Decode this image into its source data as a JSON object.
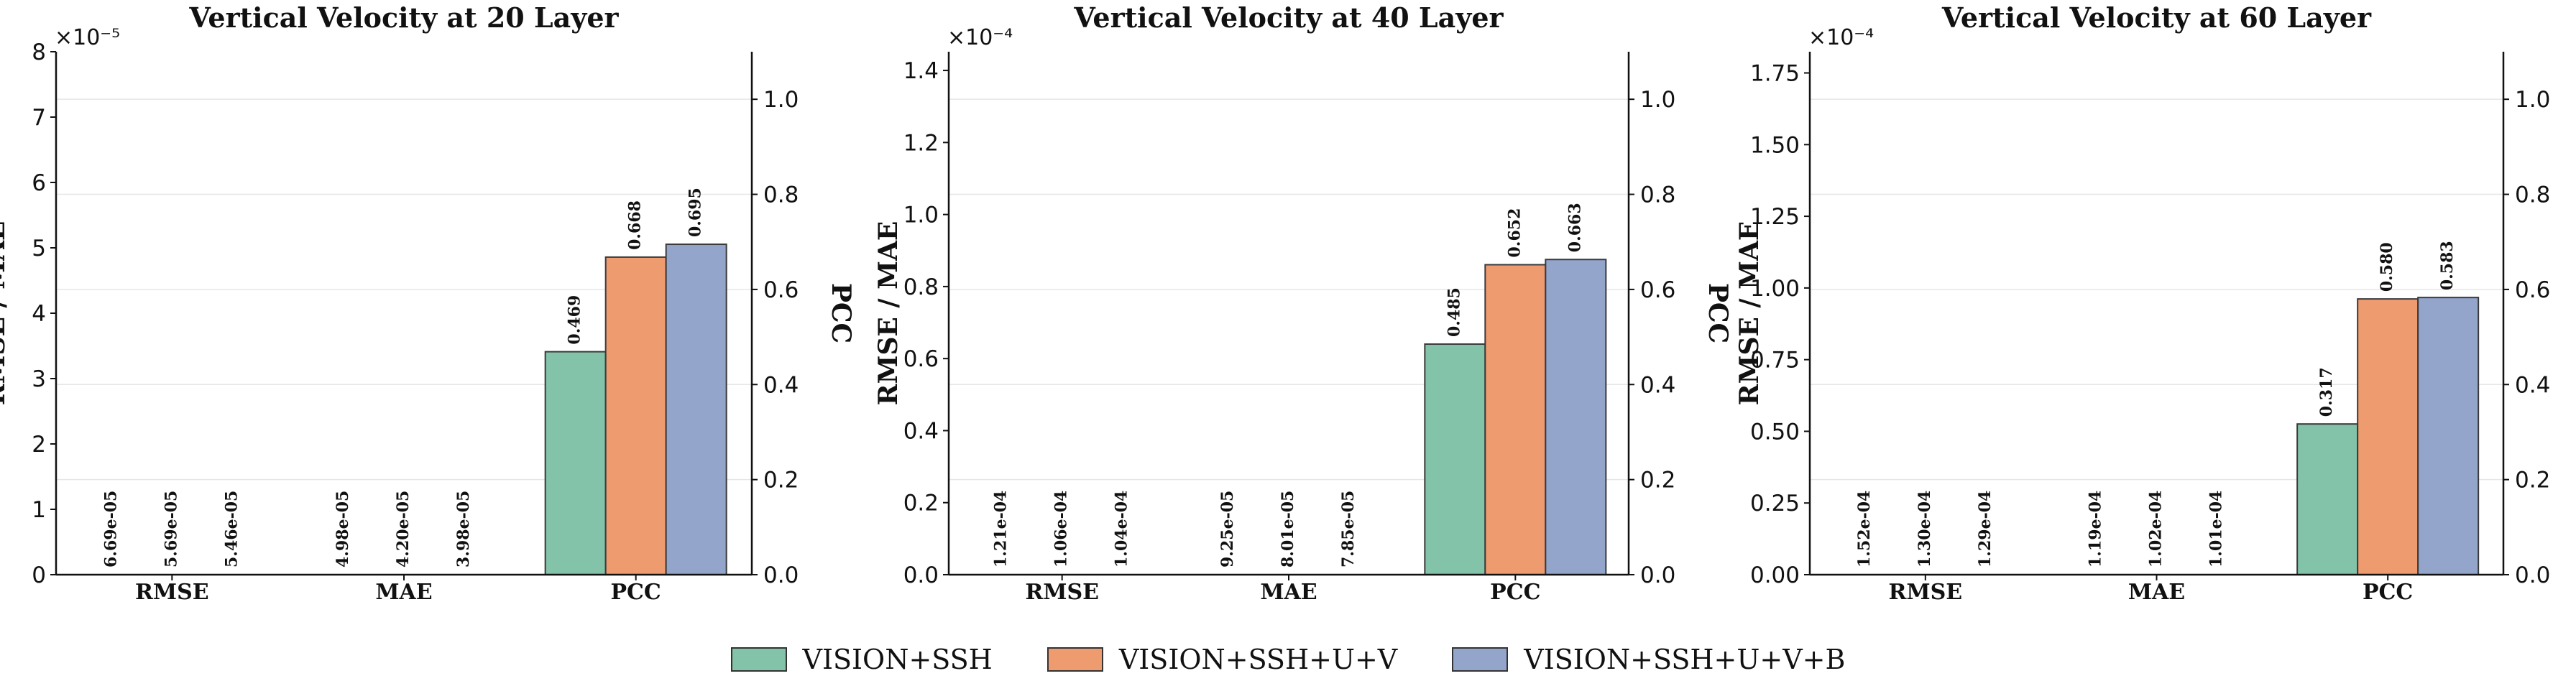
{
  "legend": {
    "items": [
      {
        "label": "VISION+SSH",
        "color": "#82c3a9"
      },
      {
        "label": "VISION+SSH+U+V",
        "color": "#ee9b70"
      },
      {
        "label": "VISION+SSH+U+V+B",
        "color": "#94a5cc"
      }
    ]
  },
  "chart_data": [
    {
      "type": "bar",
      "title": "Vertical Velocity at 20 Layer",
      "categories": [
        "RMSE",
        "MAE",
        "PCC"
      ],
      "ylabel": "RMSE / MAE",
      "ylabel_right": "PCC",
      "offset_text": "×10⁻⁵",
      "ylim": [
        0,
        8
      ],
      "yticks": [
        "0",
        "1",
        "2",
        "3",
        "4",
        "5",
        "6",
        "7",
        "8"
      ],
      "ylim_right": [
        0,
        1.1
      ],
      "yticks_right": [
        "0.0",
        "0.2",
        "0.4",
        "0.6",
        "0.8",
        "1.0"
      ],
      "series": [
        {
          "name": "VISION+SSH",
          "values": [
            6.69e-05,
            4.98e-05,
            0.469
          ],
          "labels": [
            "6.69e-05",
            "4.98e-05",
            "0.469"
          ]
        },
        {
          "name": "VISION+SSH+U+V",
          "values": [
            5.69e-05,
            4.2e-05,
            0.668
          ],
          "labels": [
            "5.69e-05",
            "4.20e-05",
            "0.668"
          ]
        },
        {
          "name": "VISION+SSH+U+V+B",
          "values": [
            5.46e-05,
            3.98e-05,
            0.695
          ],
          "labels": [
            "5.46e-05",
            "3.98e-05",
            "0.695"
          ]
        }
      ]
    },
    {
      "type": "bar",
      "title": "Vertical Velocity at 40 Layer",
      "categories": [
        "RMSE",
        "MAE",
        "PCC"
      ],
      "ylabel": "RMSE / MAE",
      "ylabel_right": "PCC",
      "offset_text": "×10⁻⁴",
      "ylim": [
        0,
        1.452
      ],
      "yticks": [
        "0.0",
        "0.2",
        "0.4",
        "0.6",
        "0.8",
        "1.0",
        "1.2",
        "1.4"
      ],
      "ylim_right": [
        0,
        1.1
      ],
      "yticks_right": [
        "0.0",
        "0.2",
        "0.4",
        "0.6",
        "0.8",
        "1.0"
      ],
      "series": [
        {
          "name": "VISION+SSH",
          "values": [
            0.000121,
            9.25e-05,
            0.485
          ],
          "labels": [
            "1.21e-04",
            "9.25e-05",
            "0.485"
          ]
        },
        {
          "name": "VISION+SSH+U+V",
          "values": [
            0.000106,
            8.01e-05,
            0.652
          ],
          "labels": [
            "1.06e-04",
            "8.01e-05",
            "0.652"
          ]
        },
        {
          "name": "VISION+SSH+U+V+B",
          "values": [
            0.000104,
            7.85e-05,
            0.663
          ],
          "labels": [
            "1.04e-04",
            "7.85e-05",
            "0.663"
          ]
        }
      ]
    },
    {
      "type": "bar",
      "title": "Vertical Velocity at 60 Layer",
      "categories": [
        "RMSE",
        "MAE",
        "PCC"
      ],
      "ylabel": "RMSE / MAE",
      "ylabel_right": "PCC",
      "offset_text": "×10⁻⁴",
      "ylim": [
        0,
        1.824
      ],
      "yticks": [
        "0.00",
        "0.25",
        "0.50",
        "0.75",
        "1.00",
        "1.25",
        "1.50",
        "1.75"
      ],
      "ylim_right": [
        0,
        1.1
      ],
      "yticks_right": [
        "0.0",
        "0.2",
        "0.4",
        "0.6",
        "0.8",
        "1.0"
      ],
      "series": [
        {
          "name": "VISION+SSH",
          "values": [
            0.000152,
            0.000119,
            0.317
          ],
          "labels": [
            "1.52e-04",
            "1.19e-04",
            "0.317"
          ]
        },
        {
          "name": "VISION+SSH+U+V",
          "values": [
            0.00013,
            0.000102,
            0.58
          ],
          "labels": [
            "1.30e-04",
            "1.02e-04",
            "0.580"
          ]
        },
        {
          "name": "VISION+SSH+U+V+B",
          "values": [
            0.000129,
            0.000101,
            0.583
          ],
          "labels": [
            "1.29e-04",
            "1.01e-04",
            "0.583"
          ]
        }
      ]
    }
  ]
}
